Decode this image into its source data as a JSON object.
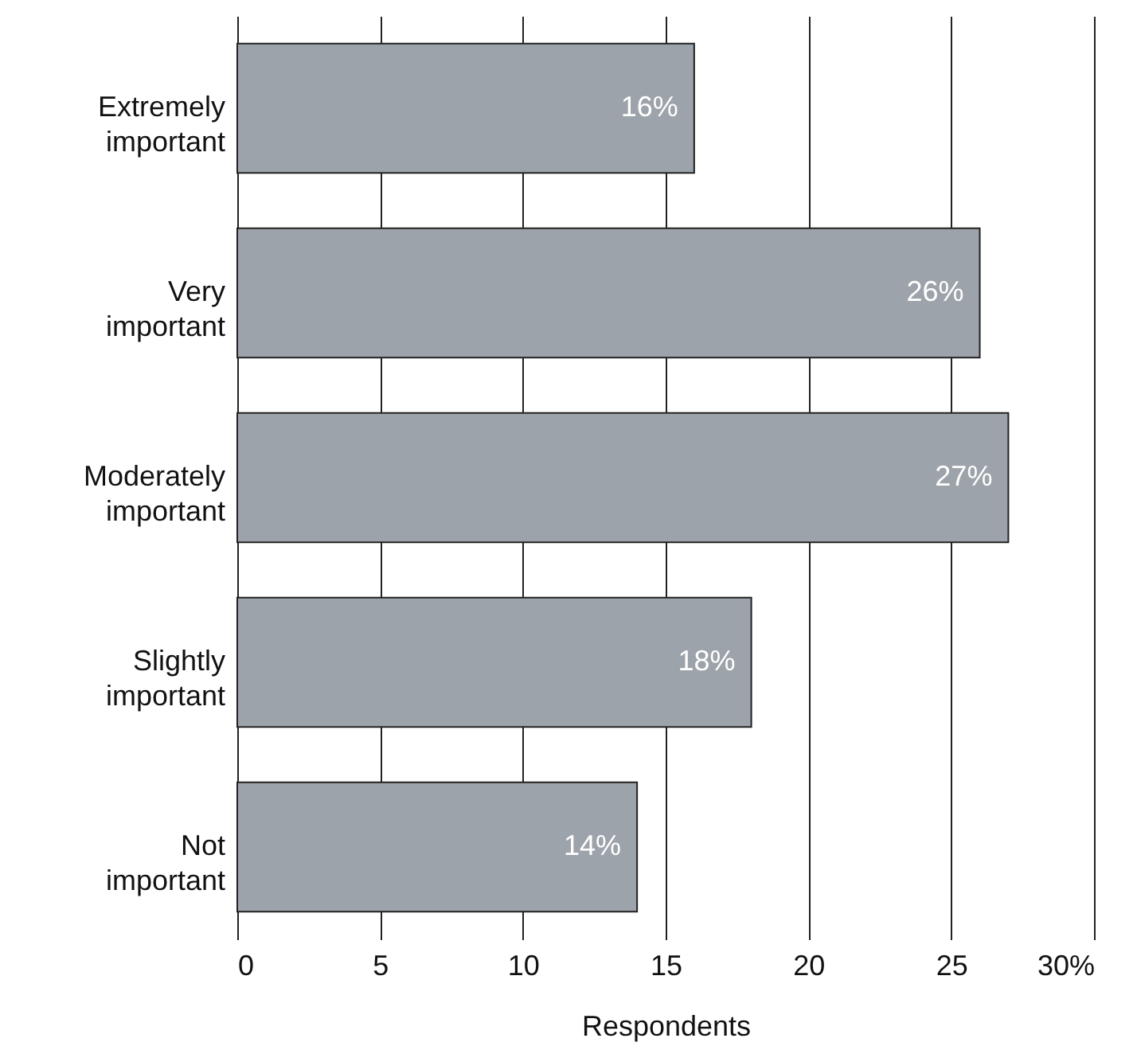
{
  "chart_data": {
    "type": "bar",
    "orientation": "horizontal",
    "xlabel": "Respondents",
    "categories": [
      "Extremely important",
      "Very important",
      "Moderately important",
      "Slightly important",
      "Not important"
    ],
    "values": [
      16,
      26,
      27,
      18,
      14
    ],
    "value_labels": [
      "16%",
      "26%",
      "27%",
      "18%",
      "14%"
    ],
    "color": "#9da3aa",
    "xlim": [
      0,
      30
    ],
    "xticks": [
      0,
      5,
      10,
      15,
      20,
      25,
      {
        "value": 30,
        "label": "30%"
      }
    ],
    "grid": "x"
  }
}
